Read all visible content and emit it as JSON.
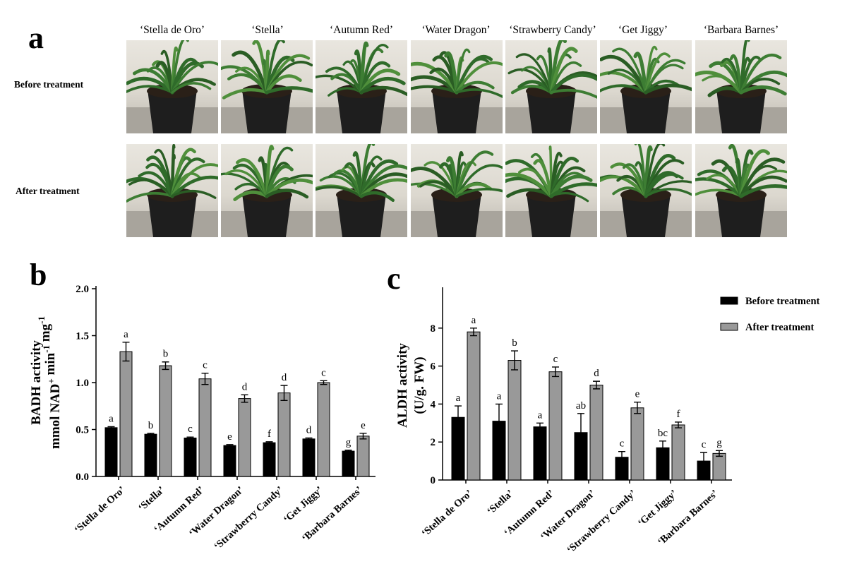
{
  "panel_a": {
    "letter": "a",
    "cultivars": [
      "‘Stella de Oro’",
      "‘Stella’",
      "‘Autumn Red’",
      "‘Water Dragon’",
      "‘Strawberry Candy’",
      "‘Get Jiggy’",
      "‘Barbara Barnes’"
    ],
    "rows": [
      "Before treatment",
      "After treatment"
    ]
  },
  "colors": {
    "before": "#000000",
    "after": "#999999"
  },
  "chart_data": [
    {
      "panel": "b",
      "type": "bar",
      "categories": [
        "‘Stella de Oro’",
        "‘Stella’",
        "‘Autumn Red’",
        "‘Water Dragon’",
        "‘Strawberry Candy’",
        "‘Get Jiggy’",
        "‘Barbara Barnes’"
      ],
      "series": [
        {
          "name": "Before treatment",
          "values": [
            0.52,
            0.45,
            0.41,
            0.33,
            0.36,
            0.4,
            0.27
          ],
          "errors": [
            0.01,
            0.01,
            0.01,
            0.01,
            0.01,
            0.01,
            0.01
          ],
          "letters": [
            "a",
            "b",
            "c",
            "e",
            "f",
            "d",
            "g"
          ]
        },
        {
          "name": "After treatment",
          "values": [
            1.33,
            1.18,
            1.04,
            0.83,
            0.89,
            1.0,
            0.43
          ],
          "errors": [
            0.1,
            0.04,
            0.06,
            0.04,
            0.08,
            0.02,
            0.03
          ],
          "letters": [
            "a",
            "b",
            "c",
            "d",
            "d",
            "c",
            "e"
          ]
        }
      ],
      "ylabel_line1": "BADH activity",
      "ylabel_line2_prefix": "mmol NAD",
      "ylabel_line2_sup1": "+",
      "ylabel_line2_mid": " min",
      "ylabel_line2_sup2": "-1",
      "ylabel_line2_mid2": " mg",
      "ylabel_line2_sup3": "-1",
      "ylim": [
        0,
        2.0
      ],
      "yticks": [
        "0.0",
        "0.5",
        "1.0",
        "1.5",
        "2.0"
      ],
      "ytick_values": [
        0,
        0.5,
        1.0,
        1.5,
        2.0
      ]
    },
    {
      "panel": "c",
      "type": "bar",
      "categories": [
        "‘Stella de Oro’",
        "‘Stella’",
        "‘Autumn Red’",
        "‘Water Dragon’",
        "‘Strawberry Candy’",
        "‘Get Jiggy’",
        "‘Barbara Barnes’"
      ],
      "series": [
        {
          "name": "Before treatment",
          "values": [
            3.3,
            3.1,
            2.8,
            2.5,
            1.2,
            1.7,
            1.0
          ],
          "errors": [
            0.6,
            0.9,
            0.2,
            1.0,
            0.3,
            0.35,
            0.45
          ],
          "letters": [
            "a",
            "a",
            "a",
            "ab",
            "c",
            "bc",
            "c"
          ]
        },
        {
          "name": "After treatment",
          "values": [
            7.8,
            6.3,
            5.7,
            5.0,
            3.8,
            2.9,
            1.4
          ],
          "errors": [
            0.2,
            0.5,
            0.25,
            0.2,
            0.3,
            0.15,
            0.15
          ],
          "letters": [
            "a",
            "b",
            "c",
            "d",
            "e",
            "f",
            "g"
          ]
        }
      ],
      "ylabel_line1": "ALDH activity",
      "ylabel_line2": "(U/g. FW)",
      "ylim": [
        0,
        10
      ],
      "yticks": [
        "0",
        "2",
        "4",
        "6",
        "8"
      ],
      "ytick_values": [
        0,
        2,
        4,
        6,
        8
      ],
      "legend": [
        "Before treatment",
        "After treatment"
      ],
      "legend_position": "top-right"
    }
  ]
}
